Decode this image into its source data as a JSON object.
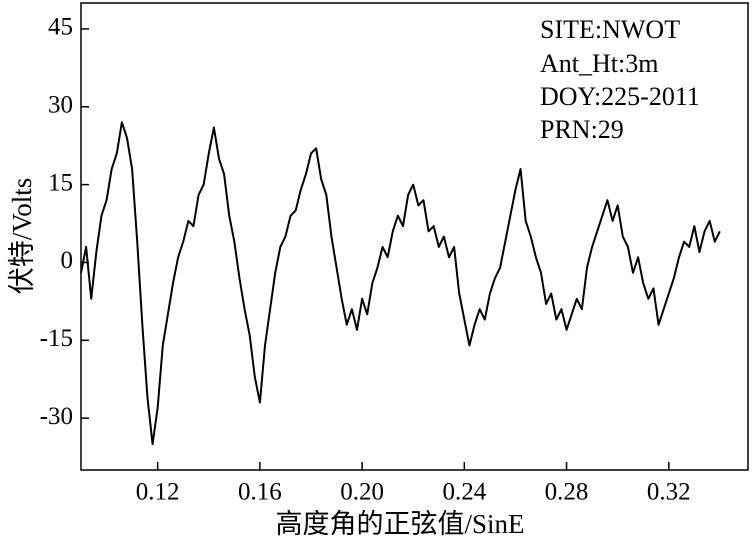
{
  "chart_data": {
    "type": "line",
    "xlabel": "高度角的正弦值/SinE",
    "ylabel": "伏特/Volts",
    "annotations": [
      "SITE:NWOT",
      "Ant_Ht:3m",
      "DOY:225-2011",
      "PRN:29"
    ],
    "color": "#000000",
    "xlim": [
      0.09,
      0.351
    ],
    "ylim": [
      -40,
      50
    ],
    "xticks": [
      0.12,
      0.16,
      {
        "value": 0.2,
        "label": "0.20"
      },
      0.24,
      0.28,
      0.32
    ],
    "yticks": [
      45,
      30,
      15,
      0,
      -15,
      -30
    ],
    "x": [
      0.09,
      0.092,
      0.094,
      0.096,
      0.098,
      0.1,
      0.102,
      0.104,
      0.106,
      0.108,
      0.11,
      0.112,
      0.114,
      0.116,
      0.118,
      0.12,
      0.122,
      0.124,
      0.126,
      0.128,
      0.13,
      0.132,
      0.134,
      0.136,
      0.138,
      0.14,
      0.142,
      0.144,
      0.146,
      0.148,
      0.15,
      0.152,
      0.154,
      0.156,
      0.158,
      0.16,
      0.162,
      0.164,
      0.166,
      0.168,
      0.17,
      0.172,
      0.174,
      0.176,
      0.178,
      0.18,
      0.182,
      0.184,
      0.186,
      0.188,
      0.19,
      0.192,
      0.194,
      0.196,
      0.198,
      0.2,
      0.202,
      0.204,
      0.206,
      0.208,
      0.21,
      0.212,
      0.214,
      0.216,
      0.218,
      0.22,
      0.222,
      0.224,
      0.226,
      0.228,
      0.23,
      0.232,
      0.234,
      0.236,
      0.238,
      0.24,
      0.242,
      0.244,
      0.246,
      0.248,
      0.25,
      0.252,
      0.254,
      0.256,
      0.258,
      0.26,
      0.262,
      0.264,
      0.266,
      0.268,
      0.27,
      0.272,
      0.274,
      0.276,
      0.278,
      0.28,
      0.282,
      0.284,
      0.286,
      0.288,
      0.29,
      0.292,
      0.294,
      0.296,
      0.298,
      0.3,
      0.302,
      0.304,
      0.306,
      0.308,
      0.31,
      0.312,
      0.314,
      0.316,
      0.318,
      0.32,
      0.322,
      0.324,
      0.326,
      0.328,
      0.33,
      0.332,
      0.334,
      0.336,
      0.338,
      0.34
    ],
    "values": [
      -2,
      3,
      -7,
      2,
      9,
      12,
      18,
      21,
      27,
      24,
      18,
      4,
      -12,
      -26,
      -35,
      -28,
      -16,
      -10,
      -4,
      1,
      4,
      8,
      7,
      13,
      15,
      21,
      26,
      20,
      17,
      9,
      4,
      -3,
      -9,
      -14,
      -22,
      -27,
      -16,
      -9,
      -2,
      3,
      5,
      9,
      10,
      14,
      17,
      21,
      22,
      16,
      13,
      5,
      -1,
      -7,
      -12,
      -9,
      -13,
      -7,
      -10,
      -4,
      -1,
      3,
      1,
      6,
      9,
      7,
      13,
      15,
      11,
      12,
      6,
      7,
      3,
      5,
      1,
      3,
      -6,
      -11,
      -16,
      -12,
      -9,
      -11,
      -6,
      -3,
      -1,
      4,
      9,
      14,
      18,
      8,
      5,
      1,
      -2,
      -8,
      -6,
      -11,
      -9,
      -13,
      -10,
      -7,
      -9,
      -1,
      3,
      6,
      9,
      12,
      8,
      11,
      5,
      3,
      -2,
      1,
      -4,
      -7,
      -5,
      -12,
      -9,
      -6,
      -3,
      1,
      4,
      3,
      7,
      2,
      6,
      8,
      4,
      6
    ]
  }
}
